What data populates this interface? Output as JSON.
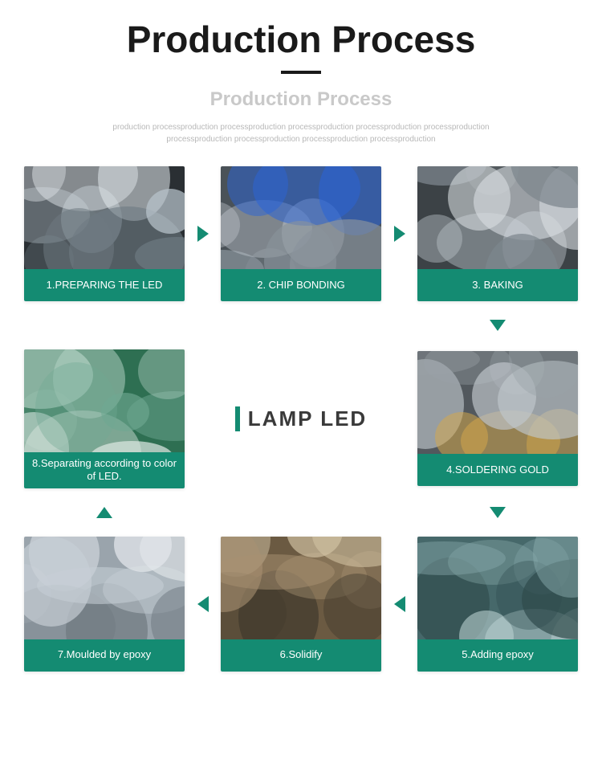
{
  "header": {
    "main_title": "Production Process",
    "sub_title": "Production Process",
    "description": "production processproduction processproduction processproduction processproduction processproduction processproduction processproduction processproduction processproduction"
  },
  "center_label": "LAMP  LED",
  "accent_color": "#148b72",
  "steps": {
    "s1": {
      "label": "1.PREPARING THE LED",
      "img_colors": [
        "#2a2f33",
        "#6e7a82",
        "#b8c4cc",
        "#e0e6ea"
      ]
    },
    "s2": {
      "label": "2. CHIP BONDING",
      "img_colors": [
        "#4a5258",
        "#8a949c",
        "#c3cad0",
        "#2b64d6"
      ]
    },
    "s3": {
      "label": "3. BAKING",
      "img_colors": [
        "#3c4246",
        "#7d868d",
        "#b7bfc5",
        "#d9dee2"
      ]
    },
    "s4": {
      "label": "4.SOLDERING GOLD",
      "img_colors": [
        "#52585d",
        "#9aa2a8",
        "#d6a84a",
        "#c0c7cc"
      ]
    },
    "s5": {
      "label": "5.Adding epoxy",
      "img_colors": [
        "#46686a",
        "#88a9ab",
        "#b9d0d1",
        "#2f4b4c"
      ]
    },
    "s6": {
      "label": "6.Solidify",
      "img_colors": [
        "#6b5a42",
        "#a89172",
        "#d2c3a4",
        "#3f382c"
      ]
    },
    "s7": {
      "label": "7.Moulded by epoxy",
      "img_colors": [
        "#9aa4ac",
        "#c7cfd6",
        "#e2e7eb",
        "#6e7880"
      ]
    },
    "s8": {
      "label": "8.Separating according to color of LED.",
      "img_colors": [
        "#2e6f52",
        "#6fa892",
        "#b4d2c5",
        "#dde9e3"
      ]
    }
  }
}
